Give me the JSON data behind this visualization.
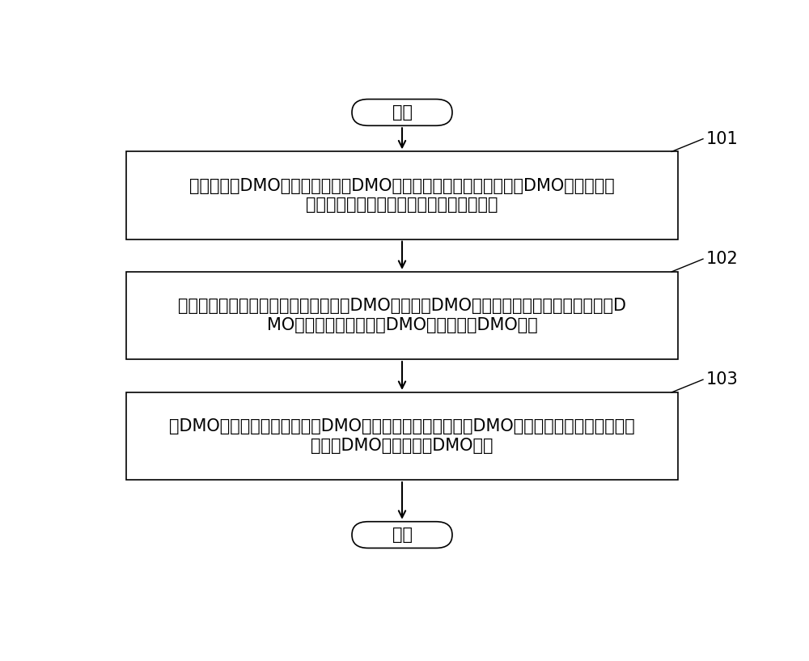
{
  "background_color": "#ffffff",
  "start_label": "开始",
  "end_label": "结束",
  "step_labels": [
    "预先为直逝DMO终端配置专用于DMO呼叫的同步信号，所述专用于DMO呼叫的同步\n信号不同于集群模式呼叫时使用的同步信号",
    "当宽带集群基站不参与控制终端之间的DMO呼叫时，DMO呼叫的主控终端利用所述专用于D\nMO呼叫的同步信号，在DMO信道上发起DMO呼叫",
    "当DMO呼叫的从属终端在所述DMO信道上监听到所述专用于DMO呼叫的同步信号时，判定当\n前所述DMO信道上存在DMO呼叫"
  ],
  "step_numbers": [
    "101",
    "102",
    "103"
  ],
  "box_color": "#ffffff",
  "border_color": "#000000",
  "arrow_color": "#000000",
  "text_color": "#000000",
  "font_size": 15,
  "step_number_font_size": 15
}
